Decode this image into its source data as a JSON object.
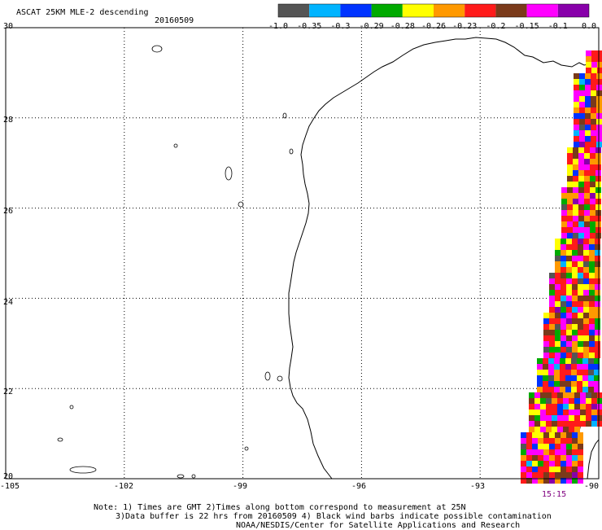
{
  "header": {
    "title": "ASCAT 25KM MLE-2 descending",
    "date": "20160509"
  },
  "colorbar": {
    "colors": [
      "#555555",
      "#00b4ff",
      "#0033ff",
      "#00aa00",
      "#ffff00",
      "#ff9900",
      "#ff1a1a",
      "#7a3a1a",
      "#ff00ff",
      "#8800aa"
    ],
    "tick_labels": [
      "-1.0",
      "-0.35",
      "-0.3",
      "-0.29",
      "-0.28",
      "-0.26",
      "-0.23",
      "-0.2",
      "-0.15",
      "-0.1",
      "0.0"
    ]
  },
  "axes": {
    "lon_labels": [
      "-105",
      "-102",
      "-99",
      "-96",
      "-93",
      "-90"
    ],
    "lat_labels": [
      "30",
      "28",
      "26",
      "24",
      "22",
      "20"
    ],
    "lon_range": [
      -105,
      -90
    ],
    "lat_range": [
      20,
      30
    ],
    "grid": "dotted"
  },
  "swath": {
    "time_label": "15:15",
    "time_color": "#800080"
  },
  "notes": {
    "line1": "Note: 1) Times are GMT 2)Times along bottom correspond to measurement at 25N",
    "line2": "3)Data buffer is 22 hrs from 20160509 4) Black wind barbs indicate possible contamination",
    "line3": "NOAA/NESDIS/Center for Satellite Applications and Research"
  }
}
